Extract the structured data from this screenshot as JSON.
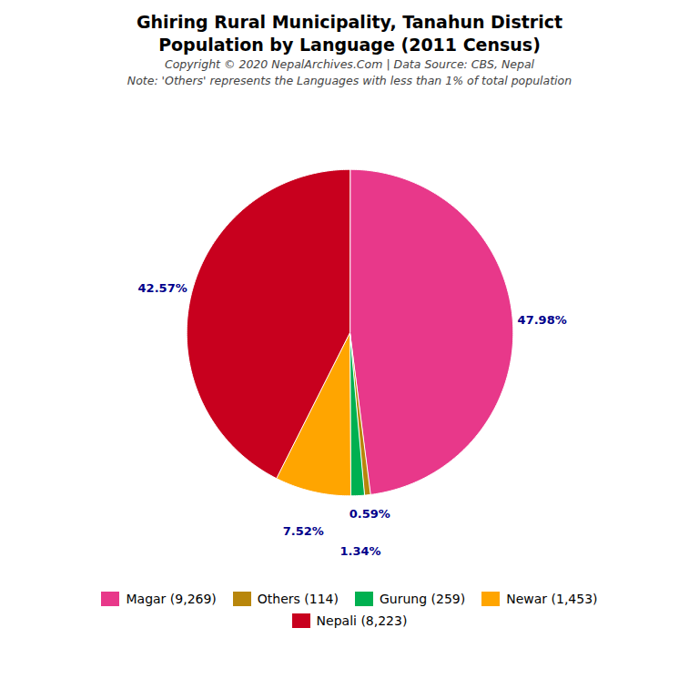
{
  "chart_data": {
    "type": "pie",
    "title": "Ghiring Rural Municipality, Tanahun District",
    "subtitle": "Population by Language (2011 Census)",
    "annotations": [
      "Copyright © 2020 NepalArchives.Com | Data Source: CBS, Nepal",
      "Note: 'Others' represents the Languages with less than 1% of total population"
    ],
    "categories": [
      "Magar (9,269)",
      "Others (114)",
      "Gurung (259)",
      "Newar (1,453)",
      "Nepali (8,223)"
    ],
    "values": [
      47.98,
      0.59,
      1.34,
      7.52,
      42.57
    ],
    "value_labels": [
      "47.98%",
      "0.59%",
      "1.34%",
      "7.52%",
      "42.57%"
    ],
    "colors": [
      "#E8388A",
      "#B8860B",
      "#00B050",
      "#FFA500",
      "#C8001E"
    ],
    "data_labels": true,
    "legend": "bottom"
  }
}
